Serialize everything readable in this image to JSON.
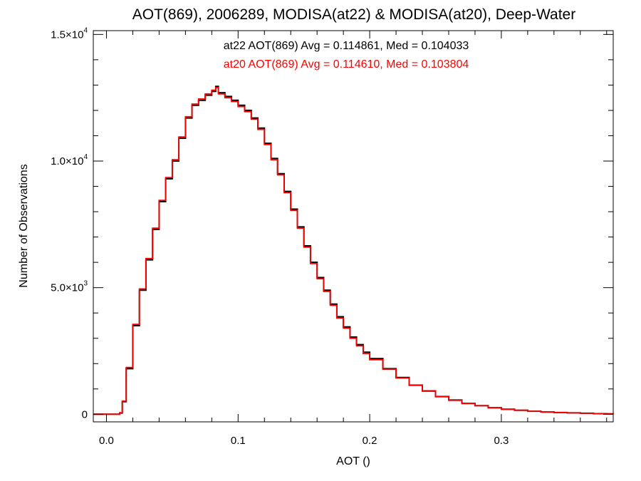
{
  "chart_data": {
    "type": "line",
    "title": "AOT(869), 2006289, MODISA(at22) & MODISA(at20), Deep-Water",
    "xlabel": "AOT ()",
    "ylabel": "Number of Observations",
    "xlim": [
      -0.01,
      0.385
    ],
    "ylim": [
      -300,
      15150
    ],
    "x_ticks": [
      0.0,
      0.1,
      0.2,
      0.3
    ],
    "x_tick_labels": [
      "0.0",
      "0.1",
      "0.2",
      "0.3"
    ],
    "y_ticks": [
      {
        "value": 0,
        "mantissa": "0",
        "exponent": ""
      },
      {
        "value": 5000,
        "mantissa": "5.0×10",
        "exponent": "3"
      },
      {
        "value": 10000,
        "mantissa": "1.0×10",
        "exponent": "4"
      },
      {
        "value": 15000,
        "mantissa": "1.5×10",
        "exponent": "4"
      }
    ],
    "grid": false,
    "plot_style": "histogram-step",
    "annotations": [
      {
        "text": "at22 AOT(869) Avg = 0.114861, Med = 0.104033",
        "color": "#000000"
      },
      {
        "text": "at20 AOT(869) Avg = 0.114610, Med = 0.103804",
        "color": "#ff0000"
      }
    ],
    "series": [
      {
        "color": "#000000",
        "x": [
          -0.01,
          0.0,
          0.005,
          0.01,
          0.012,
          0.015,
          0.02,
          0.025,
          0.03,
          0.035,
          0.04,
          0.045,
          0.05,
          0.055,
          0.06,
          0.065,
          0.07,
          0.075,
          0.08,
          0.083,
          0.085,
          0.09,
          0.095,
          0.1,
          0.105,
          0.11,
          0.115,
          0.12,
          0.125,
          0.13,
          0.135,
          0.14,
          0.145,
          0.15,
          0.155,
          0.16,
          0.165,
          0.17,
          0.175,
          0.18,
          0.185,
          0.19,
          0.195,
          0.2,
          0.21,
          0.22,
          0.23,
          0.24,
          0.25,
          0.26,
          0.27,
          0.28,
          0.29,
          0.3,
          0.31,
          0.32,
          0.33,
          0.34,
          0.35,
          0.36,
          0.37,
          0.38,
          0.385
        ],
        "y": [
          0,
          0,
          0,
          50,
          500,
          1800,
          3500,
          4900,
          6100,
          7300,
          8400,
          9300,
          10000,
          10900,
          11700,
          12200,
          12400,
          12600,
          12750,
          12950,
          12700,
          12550,
          12400,
          12200,
          12000,
          11700,
          11300,
          10700,
          10100,
          9500,
          8800,
          8100,
          7400,
          6650,
          6000,
          5400,
          4900,
          4350,
          3850,
          3450,
          3050,
          2750,
          2450,
          2200,
          1800,
          1450,
          1150,
          920,
          700,
          560,
          430,
          340,
          260,
          200,
          160,
          120,
          90,
          70,
          55,
          40,
          25,
          15,
          10
        ]
      },
      {
        "color": "#ff0000",
        "x": [
          -0.01,
          0.0,
          0.005,
          0.01,
          0.012,
          0.015,
          0.02,
          0.025,
          0.03,
          0.035,
          0.04,
          0.045,
          0.05,
          0.055,
          0.06,
          0.065,
          0.07,
          0.075,
          0.08,
          0.083,
          0.085,
          0.09,
          0.095,
          0.1,
          0.105,
          0.11,
          0.115,
          0.12,
          0.125,
          0.13,
          0.135,
          0.14,
          0.145,
          0.15,
          0.155,
          0.16,
          0.165,
          0.17,
          0.175,
          0.18,
          0.185,
          0.19,
          0.195,
          0.2,
          0.21,
          0.22,
          0.23,
          0.24,
          0.25,
          0.26,
          0.27,
          0.28,
          0.29,
          0.3,
          0.31,
          0.32,
          0.33,
          0.34,
          0.35,
          0.36,
          0.37,
          0.38,
          0.385
        ],
        "y": [
          0,
          0,
          0,
          60,
          520,
          1850,
          3550,
          4950,
          6150,
          7350,
          8450,
          9350,
          10050,
          10950,
          11750,
          12250,
          12450,
          12650,
          12800,
          12900,
          12650,
          12500,
          12350,
          12150,
          11950,
          11650,
          11250,
          10650,
          10050,
          9450,
          8750,
          8050,
          7350,
          6600,
          5950,
          5350,
          4850,
          4300,
          3800,
          3400,
          3000,
          2700,
          2400,
          2150,
          1780,
          1430,
          1140,
          910,
          690,
          550,
          425,
          335,
          255,
          198,
          158,
          118,
          88,
          68,
          52,
          38,
          24,
          14,
          9
        ]
      }
    ]
  }
}
